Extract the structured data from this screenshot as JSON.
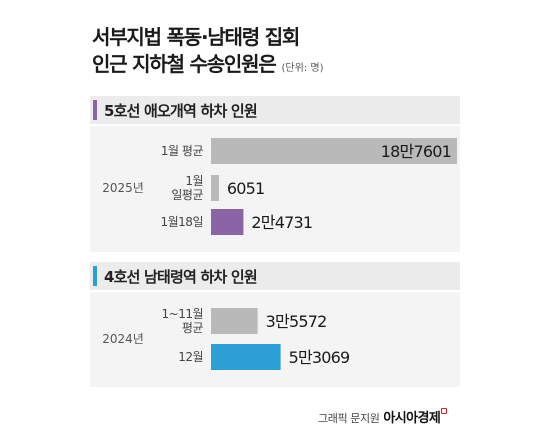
{
  "title": {
    "line1": "서부지법 폭동·남태령 집회",
    "line2": "인근 지하철 수송인원은",
    "unit": "(단위: 명)"
  },
  "source": {
    "credit": "그래픽 문지원",
    "brand": "아시아경제"
  },
  "colors": {
    "gray": "#b9b9b9",
    "purple": "#8a65a6",
    "blue": "#2c9fd6",
    "purple_accent": "#8a65a6",
    "blue_accent": "#2c9fd6"
  },
  "chart_data": [
    {
      "type": "bar",
      "title": "5호선 애오개역 하차 인원",
      "group_label": "2025년",
      "categories": [
        "1월 평균",
        "1월 일평균",
        "1월18일"
      ],
      "category_lines": [
        [
          "1월 평균"
        ],
        [
          "1월",
          "일평균"
        ],
        [
          "1월18일"
        ]
      ],
      "values": [
        187601,
        6051,
        24731
      ],
      "value_labels": [
        "18만7601",
        "6051",
        "2만4731"
      ],
      "colors": [
        "#b9b9b9",
        "#b9b9b9",
        "#8a65a6"
      ]
    },
    {
      "type": "bar",
      "title": "4호선 남태령역 하차 인원",
      "group_label": "2024년",
      "categories": [
        "1~11월 평균",
        "12월"
      ],
      "category_lines": [
        [
          "1~11월",
          "평균"
        ],
        [
          "12월"
        ]
      ],
      "values": [
        35572,
        53069
      ],
      "value_labels": [
        "3만5572",
        "5만3069"
      ],
      "colors": [
        "#b9b9b9",
        "#2c9fd6"
      ]
    }
  ]
}
